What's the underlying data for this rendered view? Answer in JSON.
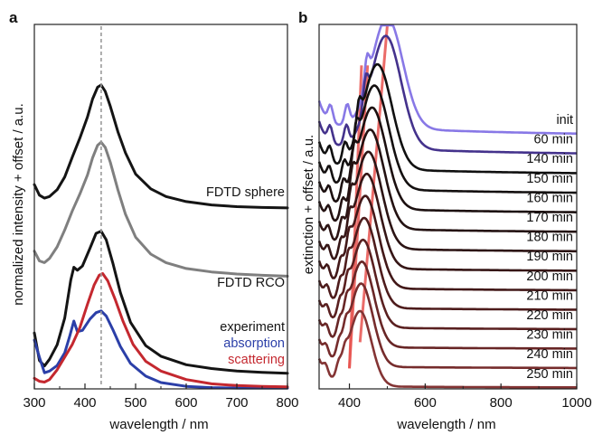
{
  "figure": {
    "background": "#ffffff"
  },
  "chart_data": [
    {
      "panel_label": "a",
      "type": "line",
      "xlabel": "wavelength / nm",
      "ylabel": "normalized intensity + offset / a.u.",
      "xlim": [
        300,
        800
      ],
      "ylim": [
        0,
        8.6
      ],
      "xticks": [
        300,
        400,
        500,
        600,
        700,
        800
      ],
      "xtick_labels": [
        "300",
        "400",
        "500",
        "600",
        "700",
        "800"
      ],
      "y_tick_labels": false,
      "grid": false,
      "reference_line": {
        "x": 432,
        "style": "dashed",
        "color": "#9a9a9a"
      },
      "series": [
        {
          "name": "FDTD sphere",
          "color": "#141414",
          "offset": 4.12,
          "x": [
            300,
            310,
            320,
            330,
            345,
            360,
            375,
            390,
            405,
            415,
            425,
            432,
            440,
            450,
            465,
            480,
            500,
            530,
            560,
            600,
            650,
            700,
            750,
            800
          ],
          "y": [
            0.7,
            0.45,
            0.38,
            0.42,
            0.58,
            0.88,
            1.35,
            1.8,
            2.3,
            2.72,
            3.0,
            3.05,
            2.9,
            2.55,
            1.95,
            1.45,
            0.95,
            0.6,
            0.42,
            0.3,
            0.22,
            0.18,
            0.16,
            0.15
          ]
        },
        {
          "name": "FDTD RCO",
          "color": "#7f7f7f",
          "offset": 2.4,
          "x": [
            300,
            310,
            320,
            330,
            345,
            360,
            375,
            390,
            405,
            415,
            425,
            432,
            440,
            450,
            465,
            480,
            500,
            530,
            560,
            600,
            650,
            700,
            750,
            800
          ],
          "y": [
            0.85,
            0.62,
            0.58,
            0.68,
            0.95,
            1.35,
            1.8,
            2.2,
            2.65,
            3.05,
            3.35,
            3.42,
            3.3,
            2.95,
            2.3,
            1.72,
            1.18,
            0.78,
            0.58,
            0.44,
            0.36,
            0.31,
            0.28,
            0.26
          ]
        },
        {
          "name": "experiment",
          "color": "#141414",
          "offset": 0.22,
          "x": [
            300,
            310,
            320,
            330,
            345,
            360,
            372,
            378,
            385,
            395,
            410,
            422,
            432,
            442,
            455,
            470,
            490,
            520,
            550,
            600,
            650,
            700,
            750,
            800
          ],
          "y": [
            1.1,
            0.45,
            0.32,
            0.48,
            0.82,
            1.45,
            2.35,
            2.65,
            2.58,
            2.68,
            3.1,
            3.45,
            3.5,
            3.3,
            2.75,
            2.05,
            1.35,
            0.8,
            0.55,
            0.35,
            0.26,
            0.2,
            0.17,
            0.15
          ]
        },
        {
          "name": "absorption",
          "color": "#2b3fa8",
          "offset": 0.0,
          "x": [
            300,
            310,
            320,
            330,
            345,
            360,
            370,
            378,
            385,
            395,
            410,
            422,
            432,
            442,
            455,
            470,
            490,
            520,
            550,
            600,
            650,
            700,
            750,
            800
          ],
          "y": [
            1.15,
            0.75,
            0.38,
            0.42,
            0.55,
            0.85,
            1.25,
            1.6,
            1.35,
            1.38,
            1.65,
            1.8,
            1.84,
            1.72,
            1.4,
            1.0,
            0.6,
            0.3,
            0.15,
            0.06,
            0.03,
            0.02,
            0.02,
            0.02
          ]
        },
        {
          "name": "scattering",
          "color": "#c4282f",
          "offset": 0.0,
          "x": [
            300,
            310,
            320,
            330,
            345,
            360,
            375,
            390,
            405,
            418,
            428,
            435,
            445,
            460,
            475,
            495,
            520,
            550,
            600,
            650,
            700,
            750,
            800
          ],
          "y": [
            0.25,
            0.18,
            0.16,
            0.22,
            0.45,
            0.75,
            1.05,
            1.45,
            2.0,
            2.45,
            2.68,
            2.72,
            2.55,
            2.1,
            1.6,
            1.05,
            0.65,
            0.42,
            0.22,
            0.12,
            0.08,
            0.06,
            0.05
          ]
        }
      ],
      "series_labels": [
        {
          "text": "FDTD sphere",
          "color": "#141414"
        },
        {
          "text": "FDTD RCO",
          "color": "#141414"
        },
        {
          "text": "experiment",
          "color": "#141414"
        },
        {
          "text": "absorption",
          "color": "#2b3fa8"
        },
        {
          "text": "scattering",
          "color": "#c4282f"
        }
      ]
    },
    {
      "panel_label": "b",
      "type": "line",
      "xlabel": "wavelength / nm",
      "ylabel": "extinction + offset / a.u.",
      "xlim": [
        320,
        1000
      ],
      "ylim": [
        0,
        16.0
      ],
      "xticks": [
        400,
        600,
        800,
        1000
      ],
      "xtick_labels": [
        "400",
        "600",
        "800",
        "1000"
      ],
      "y_tick_labels": false,
      "grid": false,
      "peak_guides": {
        "color": "#e8534f",
        "lines": [
          {
            "x_bottom": 400,
            "x_top": 432,
            "y_bottom": 0.9,
            "y_top": 14.2
          },
          {
            "x_bottom": 400,
            "x_top": 448,
            "y_bottom": 0.9,
            "y_top": 14.2
          },
          {
            "x_bottom": 428,
            "x_top": 500,
            "y_bottom": 2.05,
            "y_top": 15.95
          }
        ]
      },
      "series": [
        {
          "name": "init",
          "color": "#8878e6",
          "offset": 11.1,
          "peak_x": 500,
          "peak_height": 4.85,
          "width": 58,
          "shoulders": [
            {
              "x": 446,
              "h": 2.6
            },
            {
              "x": 394,
              "h": 1.9
            },
            {
              "x": 350,
              "h": 1.6
            }
          ],
          "tail": 0.35,
          "base": 0.0
        },
        {
          "name": "60 min",
          "color": "#44328c",
          "offset": 10.25,
          "peak_x": 496,
          "peak_height": 4.95,
          "width": 57,
          "shoulders": [
            {
              "x": 443,
              "h": 2.55
            },
            {
              "x": 392,
              "h": 1.85
            },
            {
              "x": 349,
              "h": 1.55
            }
          ],
          "tail": 0.3,
          "base": 0.0
        },
        {
          "name": "140 min",
          "color": "#101010",
          "offset": 9.4,
          "peak_x": 474,
          "peak_height": 4.6,
          "width": 54,
          "shoulders": [
            {
              "x": 425,
              "h": 2.4
            },
            {
              "x": 388,
              "h": 1.75
            },
            {
              "x": 348,
              "h": 1.5
            }
          ],
          "tail": 0.25,
          "base": 0.0
        },
        {
          "name": "150 min",
          "color": "#141010",
          "offset": 8.55,
          "peak_x": 466,
          "peak_height": 4.55,
          "width": 53,
          "shoulders": [
            {
              "x": 418,
              "h": 2.3
            },
            {
              "x": 386,
              "h": 1.7
            },
            {
              "x": 347,
              "h": 1.45
            }
          ],
          "tail": 0.22,
          "base": 0.0
        },
        {
          "name": "160 min",
          "color": "#1c1010",
          "offset": 7.7,
          "peak_x": 460,
          "peak_height": 4.45,
          "width": 52,
          "shoulders": [
            {
              "x": 412,
              "h": 2.2
            },
            {
              "x": 384,
              "h": 1.65
            },
            {
              "x": 346,
              "h": 1.4
            }
          ],
          "tail": 0.2,
          "base": 0.0
        },
        {
          "name": "170 min",
          "color": "#241212",
          "offset": 6.85,
          "peak_x": 455,
          "peak_height": 4.35,
          "width": 51,
          "shoulders": [
            {
              "x": 408,
              "h": 2.1
            },
            {
              "x": 382,
              "h": 1.6
            },
            {
              "x": 345,
              "h": 1.35
            }
          ],
          "tail": 0.18,
          "base": 0.0
        },
        {
          "name": "180 min",
          "color": "#2c1414",
          "offset": 6.0,
          "peak_x": 450,
          "peak_height": 4.25,
          "width": 50,
          "shoulders": [
            {
              "x": 404,
              "h": 2.0
            },
            {
              "x": 380,
              "h": 1.55
            },
            {
              "x": 344,
              "h": 1.3
            }
          ],
          "tail": 0.16,
          "base": 0.0
        },
        {
          "name": "190 min",
          "color": "#361616",
          "offset": 5.15,
          "peak_x": 446,
          "peak_height": 4.15,
          "width": 49,
          "shoulders": [
            {
              "x": 400,
              "h": 1.9
            },
            {
              "x": 378,
              "h": 1.5
            },
            {
              "x": 343,
              "h": 1.25
            }
          ],
          "tail": 0.14,
          "base": 0.0
        },
        {
          "name": "200 min",
          "color": "#421818",
          "offset": 4.3,
          "peak_x": 442,
          "peak_height": 4.05,
          "width": 48,
          "shoulders": [
            {
              "x": 398,
              "h": 1.8
            },
            {
              "x": 377,
              "h": 1.45
            },
            {
              "x": 342,
              "h": 1.2
            }
          ],
          "tail": 0.12,
          "base": 0.0
        },
        {
          "name": "210 min",
          "color": "#4e1c1c",
          "offset": 3.45,
          "peak_x": 439,
          "peak_height": 3.95,
          "width": 47,
          "shoulders": [
            {
              "x": 396,
              "h": 1.7
            },
            {
              "x": 376,
              "h": 1.4
            },
            {
              "x": 341,
              "h": 1.15
            }
          ],
          "tail": 0.1,
          "base": 0.0
        },
        {
          "name": "220 min",
          "color": "#5a2020",
          "offset": 2.6,
          "peak_x": 436,
          "peak_height": 3.85,
          "width": 46,
          "shoulders": [
            {
              "x": 394,
              "h": 1.6
            },
            {
              "x": 375,
              "h": 1.35
            },
            {
              "x": 340,
              "h": 1.1
            }
          ],
          "tail": 0.09,
          "base": 0.0
        },
        {
          "name": "230 min",
          "color": "#682626",
          "offset": 1.75,
          "peak_x": 433,
          "peak_height": 3.75,
          "width": 45,
          "shoulders": [
            {
              "x": 392,
              "h": 1.5
            },
            {
              "x": 374,
              "h": 1.3
            },
            {
              "x": 339,
              "h": 1.05
            }
          ],
          "tail": 0.08,
          "base": 0.0
        },
        {
          "name": "240 min",
          "color": "#762c2c",
          "offset": 0.9,
          "peak_x": 431,
          "peak_height": 3.65,
          "width": 44,
          "shoulders": [
            {
              "x": 390,
              "h": 1.4
            },
            {
              "x": 373,
              "h": 1.25
            },
            {
              "x": 338,
              "h": 1.0
            }
          ],
          "tail": 0.07,
          "base": 0.0
        },
        {
          "name": "250 min",
          "color": "#843434",
          "offset": 0.05,
          "peak_x": 428,
          "peak_height": 3.3,
          "width": 42,
          "shoulders": [
            {
              "x": 388,
              "h": 1.2
            },
            {
              "x": 372,
              "h": 1.15
            },
            {
              "x": 337,
              "h": 0.95
            }
          ],
          "tail": 0.06,
          "base": 0.0
        }
      ]
    }
  ]
}
